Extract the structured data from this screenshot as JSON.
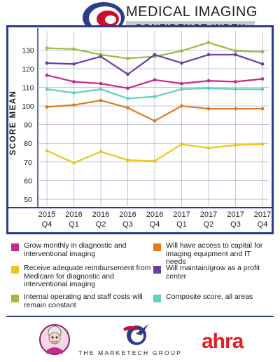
{
  "header": {
    "title_line1": "MEDICAL IMAGING",
    "title_line2": "CONFIDENCE INDEX"
  },
  "chart_data": {
    "type": "line",
    "ylabel": "SCORE MEAN",
    "ylim": [
      47,
      138
    ],
    "yticks": [
      50,
      60,
      70,
      80,
      90,
      100,
      110,
      120,
      130
    ],
    "categories": [
      [
        "2015",
        "Q4"
      ],
      [
        "2016",
        "Q1"
      ],
      [
        "2016",
        "Q2"
      ],
      [
        "2016",
        "Q3"
      ],
      [
        "2016",
        "Q4"
      ],
      [
        "2017",
        "Q1"
      ],
      [
        "2017",
        "Q2"
      ],
      [
        "2017",
        "Q3"
      ],
      [
        "2017",
        "Q4"
      ]
    ],
    "grid": true,
    "series": [
      {
        "name": "Internal operating and staff costs will remain constant",
        "color": "#9dbb3c",
        "values": [
          131,
          130.5,
          127.5,
          125.5,
          126.5,
          129.5,
          134,
          129.5,
          129
        ]
      },
      {
        "name": "Will maintain/grow as a profit center",
        "color": "#6b3fa0",
        "values": [
          123,
          122.5,
          126.5,
          117,
          127.5,
          123,
          127.5,
          127.5,
          122.5
        ]
      },
      {
        "name": "Grow monthly in diagnostic and interventional imaging",
        "color": "#c42b8c",
        "values": [
          116.5,
          113,
          112,
          109.5,
          114,
          112,
          113.5,
          113,
          114.5
        ]
      },
      {
        "name": "Composite score, all areas",
        "color": "#5ecfc0",
        "values": [
          109,
          107,
          109,
          104,
          105,
          109,
          109.5,
          109,
          109
        ]
      },
      {
        "name": "Will have access to capital for imaging equipment and IT needs",
        "color": "#e07b20",
        "values": [
          99.5,
          100.5,
          103,
          99,
          92,
          100,
          98.5,
          98.5,
          98.5
        ]
      },
      {
        "name": "Receive adequate reimbursement from Medicare for diagnostic and interventional imaging",
        "color": "#f0c419",
        "values": [
          76,
          69.5,
          75.5,
          71,
          70.5,
          79.5,
          77.5,
          79,
          79.5
        ]
      }
    ]
  },
  "legend": {
    "items": [
      {
        "label": "Grow monthly in diagnostic and interventional imaging",
        "color": "#c42b8c"
      },
      {
        "label": "Will have access to capital for imaging equipment and IT needs",
        "color": "#e07b20"
      },
      {
        "label": "Receive adequate reimbursement from Medicare for diagnostic and interventional imaging",
        "color": "#f0c419"
      },
      {
        "label": "Will maintain/grow as a profit center",
        "color": "#6b3fa0"
      },
      {
        "label": "Internal operating and staff costs will remain constant",
        "color": "#9dbb3c"
      },
      {
        "label": "Composite score, all areas",
        "color": "#5ecfc0"
      }
    ]
  },
  "footer": {
    "sponsor1": "THE MARKETECH GROUP",
    "sponsor2": "ahra"
  },
  "colors": {
    "frame": "#2e3a8c",
    "grid": "#9aa0c8"
  }
}
